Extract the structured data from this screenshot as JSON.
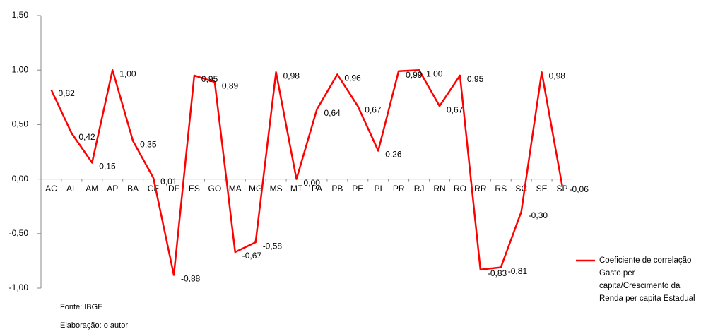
{
  "chart_data": {
    "type": "line",
    "categories": [
      "AC",
      "AL",
      "AM",
      "AP",
      "BA",
      "CE",
      "DF",
      "ES",
      "GO",
      "MA",
      "MG",
      "MS",
      "MT",
      "PA",
      "PB",
      "PE",
      "PI",
      "PR",
      "RJ",
      "RN",
      "RO",
      "RR",
      "RS",
      "SC",
      "SE",
      "SP"
    ],
    "series": [
      {
        "name": "Coeficiente de correlação Gasto per capita/Crescimento da Renda per capita Estadual",
        "color": "#ff0000",
        "values": [
          0.82,
          0.42,
          0.15,
          1.0,
          0.35,
          0.01,
          -0.88,
          0.95,
          0.89,
          -0.67,
          -0.58,
          0.98,
          0.0,
          0.64,
          0.96,
          0.67,
          0.26,
          0.99,
          1.0,
          0.67,
          0.95,
          -0.83,
          -0.81,
          -0.3,
          0.98,
          -0.06
        ],
        "value_labels": [
          "0,82",
          "0,42",
          "0,15",
          "1,00",
          "0,35",
          "0,01",
          "-0,88",
          "0,95",
          "0,89",
          "-0,67",
          "-0,58",
          "0,98",
          "0,00",
          "0,64",
          "0,96",
          "0,67",
          "0,26",
          "0,99",
          "1,00",
          "0,67",
          "0,95",
          "-0,83",
          "-0,81",
          "-0,30",
          "0,98",
          "-0,06"
        ]
      }
    ],
    "ylim": [
      -1.0,
      1.5
    ],
    "yticks": [
      {
        "value": -1.0,
        "label": "-1,00"
      },
      {
        "value": -0.5,
        "label": "-0,50"
      },
      {
        "value": 0.0,
        "label": "0,00"
      },
      {
        "value": 0.5,
        "label": "0,50"
      },
      {
        "value": 1.0,
        "label": "1,00"
      },
      {
        "value": 1.5,
        "label": "1,50"
      }
    ],
    "grid": false,
    "legend": "right",
    "notes": [
      "Fonte:  IBGE",
      "Elaboração:  o autor"
    ]
  }
}
